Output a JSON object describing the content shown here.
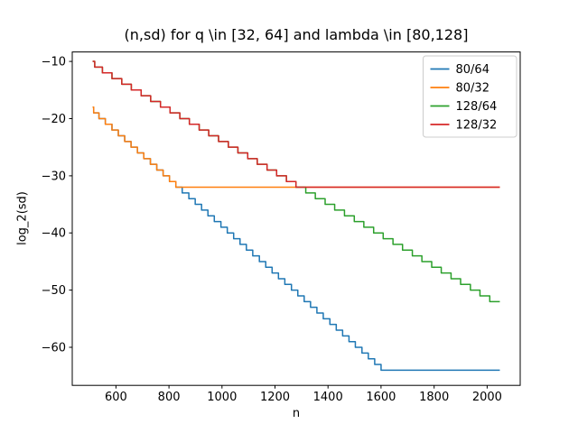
{
  "figure": {
    "background": "#ffffff",
    "spine_color": "#000000",
    "legend_border_color": "#cccccc"
  },
  "chart_data": {
    "type": "line",
    "style": "steps-post",
    "title": "(n,sd) for q \\in [32, 64] and lambda \\in [80,128]",
    "xlabel": "n",
    "ylabel": "log_2(sd)",
    "xlim": [
      435.2,
      2124.8
    ],
    "ylim": [
      -66.65,
      -8.35
    ],
    "xticks": [
      600,
      800,
      1000,
      1200,
      1400,
      1600,
      1800,
      2000
    ],
    "yticks": [
      -10,
      -20,
      -30,
      -40,
      -50,
      -60
    ],
    "grid": false,
    "legend_position": "upper right",
    "x_start": 512,
    "x_end": 2048,
    "series": [
      {
        "name": "80/64",
        "color": "#1f77b4",
        "cap": -64,
        "steps": [
          [
            512,
            -18
          ],
          [
            516,
            -19
          ],
          [
            536,
            -20
          ],
          [
            560,
            -21
          ],
          [
            585,
            -22
          ],
          [
            609,
            -23
          ],
          [
            633,
            -24
          ],
          [
            657,
            -25
          ],
          [
            681,
            -26
          ],
          [
            705,
            -27
          ],
          [
            730,
            -28
          ],
          [
            754,
            -29
          ],
          [
            778,
            -30
          ],
          [
            802,
            -31
          ],
          [
            826,
            -32
          ],
          [
            850,
            -33
          ],
          [
            875,
            -34
          ],
          [
            899,
            -35
          ],
          [
            923,
            -36
          ],
          [
            947,
            -37
          ],
          [
            971,
            -38
          ],
          [
            996,
            -39
          ],
          [
            1020,
            -40
          ],
          [
            1044,
            -41
          ],
          [
            1068,
            -42
          ],
          [
            1092,
            -43
          ],
          [
            1116,
            -44
          ],
          [
            1141,
            -45
          ],
          [
            1165,
            -46
          ],
          [
            1189,
            -47
          ],
          [
            1213,
            -48
          ],
          [
            1237,
            -49
          ],
          [
            1262,
            -50
          ],
          [
            1286,
            -51
          ],
          [
            1310,
            -52
          ],
          [
            1334,
            -53
          ],
          [
            1358,
            -54
          ],
          [
            1382,
            -55
          ],
          [
            1407,
            -56
          ],
          [
            1431,
            -57
          ],
          [
            1455,
            -58
          ],
          [
            1479,
            -59
          ],
          [
            1503,
            -60
          ],
          [
            1528,
            -61
          ],
          [
            1552,
            -62
          ],
          [
            1576,
            -63
          ],
          [
            1600,
            -64
          ]
        ]
      },
      {
        "name": "80/32",
        "color": "#ff7f0e",
        "cap": -32,
        "steps": [
          [
            512,
            -18
          ],
          [
            516,
            -19
          ],
          [
            536,
            -20
          ],
          [
            560,
            -21
          ],
          [
            585,
            -22
          ],
          [
            609,
            -23
          ],
          [
            633,
            -24
          ],
          [
            657,
            -25
          ],
          [
            681,
            -26
          ],
          [
            705,
            -27
          ],
          [
            730,
            -28
          ],
          [
            754,
            -29
          ],
          [
            778,
            -30
          ],
          [
            802,
            -31
          ],
          [
            826,
            -32
          ]
        ]
      },
      {
        "name": "128/64",
        "color": "#2ca02c",
        "cap": -64,
        "steps": [
          [
            512,
            -10
          ],
          [
            520,
            -11
          ],
          [
            549,
            -12
          ],
          [
            585,
            -13
          ],
          [
            622,
            -14
          ],
          [
            658,
            -15
          ],
          [
            695,
            -16
          ],
          [
            731,
            -17
          ],
          [
            768,
            -18
          ],
          [
            804,
            -19
          ],
          [
            841,
            -20
          ],
          [
            877,
            -21
          ],
          [
            914,
            -22
          ],
          [
            950,
            -23
          ],
          [
            987,
            -24
          ],
          [
            1024,
            -25
          ],
          [
            1060,
            -26
          ],
          [
            1097,
            -27
          ],
          [
            1133,
            -28
          ],
          [
            1170,
            -29
          ],
          [
            1206,
            -30
          ],
          [
            1243,
            -31
          ],
          [
            1279,
            -32
          ],
          [
            1316,
            -33
          ],
          [
            1352,
            -34
          ],
          [
            1389,
            -35
          ],
          [
            1425,
            -36
          ],
          [
            1462,
            -37
          ],
          [
            1499,
            -38
          ],
          [
            1535,
            -39
          ],
          [
            1572,
            -40
          ],
          [
            1608,
            -41
          ],
          [
            1645,
            -42
          ],
          [
            1681,
            -43
          ],
          [
            1718,
            -44
          ],
          [
            1754,
            -45
          ],
          [
            1791,
            -46
          ],
          [
            1827,
            -47
          ],
          [
            1864,
            -48
          ],
          [
            1900,
            -49
          ],
          [
            1937,
            -50
          ],
          [
            1973,
            -51
          ],
          [
            2010,
            -52
          ]
        ]
      },
      {
        "name": "128/32",
        "color": "#d62728",
        "cap": -32,
        "steps": [
          [
            512,
            -10
          ],
          [
            520,
            -11
          ],
          [
            549,
            -12
          ],
          [
            585,
            -13
          ],
          [
            622,
            -14
          ],
          [
            658,
            -15
          ],
          [
            695,
            -16
          ],
          [
            731,
            -17
          ],
          [
            768,
            -18
          ],
          [
            804,
            -19
          ],
          [
            841,
            -20
          ],
          [
            877,
            -21
          ],
          [
            914,
            -22
          ],
          [
            950,
            -23
          ],
          [
            987,
            -24
          ],
          [
            1024,
            -25
          ],
          [
            1060,
            -26
          ],
          [
            1097,
            -27
          ],
          [
            1133,
            -28
          ],
          [
            1170,
            -29
          ],
          [
            1206,
            -30
          ],
          [
            1243,
            -31
          ],
          [
            1279,
            -32
          ]
        ]
      }
    ]
  }
}
